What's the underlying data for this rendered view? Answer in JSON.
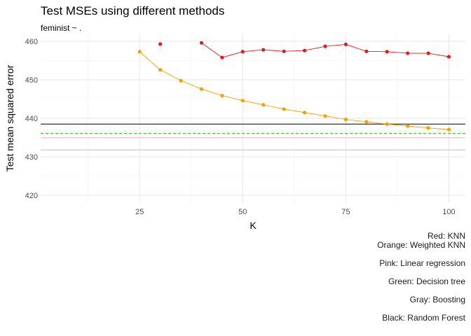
{
  "chart_data": {
    "type": "line",
    "title": "Test MSEs using different methods",
    "subtitle": "feminist ~ .",
    "xlabel": "K",
    "ylabel": "Test mean squared error",
    "xlim": [
      1,
      104
    ],
    "ylim": [
      418,
      462
    ],
    "x_ticks": [
      25,
      50,
      75,
      100
    ],
    "x_minor_ticks": [
      12.5,
      37.5,
      62.5,
      87.5
    ],
    "y_ticks": [
      420,
      430,
      440,
      450,
      460
    ],
    "y_minor_ticks": [
      425,
      435,
      445,
      455
    ],
    "grid": true,
    "legend": "none",
    "series": [
      {
        "color": "#e41a1c",
        "x": [
          30,
          40,
          45,
          50,
          55,
          60,
          65,
          70,
          75,
          80,
          85,
          90,
          95,
          100
        ],
        "y": [
          459.3,
          459.6,
          455.8,
          457.3,
          457.8,
          457.4,
          457.6,
          458.7,
          459.2,
          457.4,
          457.3,
          456.9,
          456.9,
          456.0
        ],
        "segments": [
          [
            1,
            13
          ]
        ]
      },
      {
        "color": "#f5a000",
        "x": [
          25,
          30,
          35,
          40,
          45,
          50,
          55,
          60,
          65,
          70,
          75,
          80,
          85,
          90,
          95,
          100
        ],
        "y": [
          457.3,
          452.6,
          449.8,
          447.6,
          445.9,
          444.6,
          443.5,
          442.4,
          441.5,
          440.6,
          439.7,
          439.1,
          438.5,
          438.0,
          437.5,
          437.1
        ],
        "segments": [
          [
            0,
            15
          ]
        ]
      }
    ],
    "reference_lines": [
      {
        "y": 438.5,
        "color": "#000000",
        "style": "solid"
      },
      {
        "y": 436.1,
        "color": "#33cc33",
        "style": "dashed"
      },
      {
        "y": 435.0,
        "color": "#ffc0cb",
        "style": "solid"
      },
      {
        "y": 431.8,
        "color": "#bebebe",
        "style": "solid"
      }
    ],
    "caption": [
      "Red: KNN",
      "Orange: Weighted KNN",
      "",
      "Pink: Linear regression",
      "",
      "Green: Decision tree",
      "",
      "Gray: Boosting",
      "",
      "Black: Random Forest"
    ]
  }
}
